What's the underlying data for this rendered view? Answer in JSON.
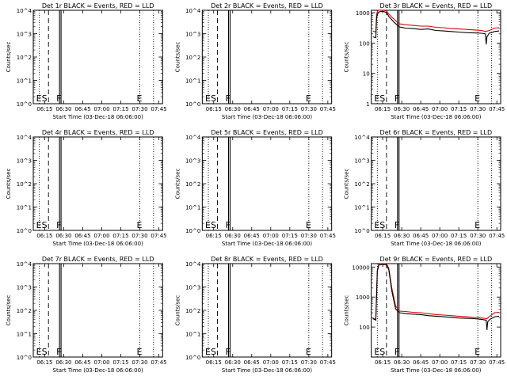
{
  "figure": {
    "xlabel_prefix": "Start Time",
    "ylabel": "Counts/sec",
    "colors": {
      "events": "#000000",
      "lld": "#dd0000",
      "axes": "#000000",
      "background": "#ffffff"
    }
  },
  "chart_data": [
    {
      "type": "line",
      "title": "Det 1r BLACK = Events, RED = LLD",
      "xlabel": "Start Time (03-Dec-18 06:06:00)",
      "ylabel": "Counts/sec",
      "xlim": [
        6.1,
        7.8
      ],
      "ylim": [
        1,
        10000
      ],
      "yscale": "log",
      "x_ticks": [
        "06:15",
        "06:30",
        "06:45",
        "07:00",
        "07:15",
        "07:30",
        "07:45"
      ],
      "y_ticks": [
        "10^0",
        "10^1",
        "10^2",
        "10^3",
        "10^4"
      ],
      "markers": [
        {
          "x": 6.18,
          "style": "dotted",
          "label": "ES"
        },
        {
          "x": 6.3,
          "style": "dashed",
          "label": ""
        },
        {
          "x": 6.445,
          "style": "solid",
          "label": "F"
        },
        {
          "x": 6.465,
          "style": "solid",
          "label": ""
        },
        {
          "x": 7.5,
          "style": "dotted",
          "label": "E"
        },
        {
          "x": 7.68,
          "style": "dotted",
          "label": ""
        }
      ],
      "series": []
    },
    {
      "type": "line",
      "title": "Det 2r BLACK = Events, RED = LLD",
      "xlabel": "Start Time (03-Dec-18 06:06:00)",
      "ylabel": "Counts/sec",
      "xlim": [
        6.1,
        7.8
      ],
      "ylim": [
        1,
        10000
      ],
      "yscale": "log",
      "x_ticks": [
        "06:15",
        "06:30",
        "06:45",
        "07:00",
        "07:15",
        "07:30",
        "07:45"
      ],
      "y_ticks": [
        "10^0",
        "10^1",
        "10^2",
        "10^3",
        "10^4"
      ],
      "markers": [
        {
          "x": 6.18,
          "style": "dotted",
          "label": "ES"
        },
        {
          "x": 6.3,
          "style": "dashed",
          "label": ""
        },
        {
          "x": 6.445,
          "style": "solid",
          "label": "F"
        },
        {
          "x": 6.465,
          "style": "solid",
          "label": ""
        },
        {
          "x": 7.5,
          "style": "dotted",
          "label": "E"
        },
        {
          "x": 7.68,
          "style": "dotted",
          "label": ""
        }
      ],
      "series": []
    },
    {
      "type": "line",
      "title": "Det 3r BLACK = Events, RED = LLD",
      "xlabel": "Start Time (03-Dec-18 06:06:00)",
      "ylabel": "Counts/sec",
      "xlim": [
        6.1,
        7.8
      ],
      "ylim": [
        1,
        1200
      ],
      "yscale": "log",
      "x_ticks": [
        "06:15",
        "06:30",
        "06:45",
        "07:00",
        "07:15",
        "07:30",
        "07:45"
      ],
      "y_ticks": [
        "1",
        "10",
        "100",
        "1000"
      ],
      "markers": [
        {
          "x": 6.18,
          "style": "dotted",
          "label": "ES"
        },
        {
          "x": 6.3,
          "style": "dashed",
          "label": ""
        },
        {
          "x": 6.445,
          "style": "solid",
          "label": "F"
        },
        {
          "x": 6.465,
          "style": "solid",
          "label": ""
        },
        {
          "x": 7.5,
          "style": "dotted",
          "label": "E"
        },
        {
          "x": 7.68,
          "style": "dotted",
          "label": ""
        }
      ],
      "series": [
        {
          "color": "#dd0000",
          "x": [
            6.12,
            6.16,
            6.17,
            6.19,
            6.22,
            6.26,
            6.3,
            6.33,
            6.4,
            6.47,
            6.55,
            6.65,
            6.75,
            6.85,
            6.95,
            7.05,
            7.15,
            7.25,
            7.35,
            7.45,
            7.55,
            7.6,
            7.65,
            7.72,
            7.78
          ],
          "y": [
            250,
            230,
            900,
            1200,
            1200,
            1200,
            1150,
            900,
            600,
            430,
            400,
            380,
            360,
            360,
            330,
            320,
            300,
            290,
            280,
            270,
            260,
            240,
            260,
            310,
            320
          ]
        },
        {
          "color": "#000000",
          "x": [
            6.12,
            6.16,
            6.17,
            6.19,
            6.22,
            6.26,
            6.3,
            6.33,
            6.4,
            6.47,
            6.55,
            6.65,
            6.75,
            6.85,
            6.95,
            7.05,
            7.15,
            7.25,
            7.35,
            7.45,
            7.55,
            7.6,
            7.61,
            7.62,
            7.65,
            7.72,
            7.78
          ],
          "y": [
            160,
            150,
            700,
            1000,
            1100,
            1100,
            1000,
            750,
            480,
            340,
            310,
            300,
            280,
            290,
            260,
            250,
            240,
            230,
            220,
            215,
            210,
            200,
            90,
            160,
            210,
            240,
            250
          ]
        }
      ]
    },
    {
      "type": "line",
      "title": "Det 4r BLACK = Events, RED = LLD",
      "xlabel": "Start Time (03-Dec-18 06:06:00)",
      "ylabel": "Counts/sec",
      "xlim": [
        6.1,
        7.8
      ],
      "ylim": [
        1,
        10000
      ],
      "yscale": "log",
      "x_ticks": [
        "06:15",
        "06:30",
        "06:45",
        "07:00",
        "07:15",
        "07:30",
        "07:45"
      ],
      "y_ticks": [
        "10^0",
        "10^1",
        "10^2",
        "10^3",
        "10^4"
      ],
      "markers": [
        {
          "x": 6.18,
          "style": "dotted",
          "label": "ES"
        },
        {
          "x": 6.3,
          "style": "dashed",
          "label": ""
        },
        {
          "x": 6.445,
          "style": "solid",
          "label": "F"
        },
        {
          "x": 6.465,
          "style": "solid",
          "label": ""
        },
        {
          "x": 7.5,
          "style": "dotted",
          "label": "E"
        },
        {
          "x": 7.68,
          "style": "dotted",
          "label": ""
        }
      ],
      "series": []
    },
    {
      "type": "line",
      "title": "Det 5r BLACK = Events, RED = LLD",
      "xlabel": "Start Time (03-Dec-18 06:06:00)",
      "ylabel": "Counts/sec",
      "xlim": [
        6.1,
        7.8
      ],
      "ylim": [
        1,
        10000
      ],
      "yscale": "log",
      "x_ticks": [
        "06:15",
        "06:30",
        "06:45",
        "07:00",
        "07:15",
        "07:30",
        "07:45"
      ],
      "y_ticks": [
        "10^0",
        "10^1",
        "10^2",
        "10^3",
        "10^4"
      ],
      "markers": [
        {
          "x": 6.18,
          "style": "dotted",
          "label": "ES"
        },
        {
          "x": 6.3,
          "style": "dashed",
          "label": ""
        },
        {
          "x": 6.445,
          "style": "solid",
          "label": "F"
        },
        {
          "x": 6.465,
          "style": "solid",
          "label": ""
        },
        {
          "x": 7.5,
          "style": "dotted",
          "label": "E"
        },
        {
          "x": 7.68,
          "style": "dotted",
          "label": ""
        }
      ],
      "series": []
    },
    {
      "type": "line",
      "title": "Det 6r BLACK = Events, RED = LLD",
      "xlabel": "Start Time (03-Dec-18 06:06:00)",
      "ylabel": "Counts/sec",
      "xlim": [
        6.1,
        7.8
      ],
      "ylim": [
        1,
        10000
      ],
      "yscale": "log",
      "x_ticks": [
        "06:15",
        "06:30",
        "06:45",
        "07:00",
        "07:15",
        "07:30",
        "07:45"
      ],
      "y_ticks": [
        "10^0",
        "10^1",
        "10^2",
        "10^3",
        "10^4"
      ],
      "markers": [
        {
          "x": 6.18,
          "style": "dotted",
          "label": "ES"
        },
        {
          "x": 6.3,
          "style": "dashed",
          "label": ""
        },
        {
          "x": 6.445,
          "style": "solid",
          "label": "F"
        },
        {
          "x": 6.465,
          "style": "solid",
          "label": ""
        },
        {
          "x": 7.5,
          "style": "dotted",
          "label": "E"
        },
        {
          "x": 7.68,
          "style": "dotted",
          "label": ""
        }
      ],
      "series": []
    },
    {
      "type": "line",
      "title": "Det 7r BLACK = Events, RED = LLD",
      "xlabel": "Start Time (03-Dec-18 06:06:00)",
      "ylabel": "Counts/sec",
      "xlim": [
        6.1,
        7.8
      ],
      "ylim": [
        1,
        10000
      ],
      "yscale": "log",
      "x_ticks": [
        "06:15",
        "06:30",
        "06:45",
        "07:00",
        "07:15",
        "07:30",
        "07:45"
      ],
      "y_ticks": [
        "10^0",
        "10^1",
        "10^2",
        "10^3",
        "10^4"
      ],
      "markers": [
        {
          "x": 6.18,
          "style": "dotted",
          "label": "ES"
        },
        {
          "x": 6.3,
          "style": "dashed",
          "label": ""
        },
        {
          "x": 6.445,
          "style": "solid",
          "label": "F"
        },
        {
          "x": 6.465,
          "style": "solid",
          "label": ""
        },
        {
          "x": 7.5,
          "style": "dotted",
          "label": "E"
        },
        {
          "x": 7.68,
          "style": "dotted",
          "label": ""
        }
      ],
      "series": []
    },
    {
      "type": "line",
      "title": "Det 8r BLACK = Events, RED = LLD",
      "xlabel": "Start Time (03-Dec-18 06:06:00)",
      "ylabel": "Counts/sec",
      "xlim": [
        6.1,
        7.8
      ],
      "ylim": [
        1,
        10000
      ],
      "yscale": "log",
      "x_ticks": [
        "06:15",
        "06:30",
        "06:45",
        "07:00",
        "07:15",
        "07:30",
        "07:45"
      ],
      "y_ticks": [
        "10^0",
        "10^1",
        "10^2",
        "10^3",
        "10^4"
      ],
      "markers": [
        {
          "x": 6.18,
          "style": "dotted",
          "label": "ES"
        },
        {
          "x": 6.3,
          "style": "dashed",
          "label": ""
        },
        {
          "x": 6.445,
          "style": "solid",
          "label": "F"
        },
        {
          "x": 6.465,
          "style": "solid",
          "label": ""
        },
        {
          "x": 7.5,
          "style": "dotted",
          "label": "E"
        },
        {
          "x": 7.68,
          "style": "dotted",
          "label": ""
        }
      ],
      "series": []
    },
    {
      "type": "line",
      "title": "Det 9r BLACK = Events, RED = LLD",
      "xlabel": "Start Time (03-Dec-18 06:06:00)",
      "ylabel": "Counts/sec",
      "xlim": [
        6.1,
        7.8
      ],
      "ylim": [
        10,
        13000
      ],
      "yscale": "log",
      "x_ticks": [
        "06:15",
        "06:30",
        "06:45",
        "07:00",
        "07:15",
        "07:30",
        "07:45"
      ],
      "y_ticks": [
        "100",
        "1000",
        "10000"
      ],
      "markers": [
        {
          "x": 6.18,
          "style": "dotted",
          "label": "ES"
        },
        {
          "x": 6.3,
          "style": "dashed",
          "label": ""
        },
        {
          "x": 6.445,
          "style": "solid",
          "label": "F"
        },
        {
          "x": 6.465,
          "style": "solid",
          "label": ""
        },
        {
          "x": 7.5,
          "style": "dotted",
          "label": "E"
        },
        {
          "x": 7.68,
          "style": "dotted",
          "label": ""
        }
      ],
      "series": [
        {
          "color": "#dd0000",
          "x": [
            6.12,
            6.16,
            6.18,
            6.2,
            6.25,
            6.3,
            6.33,
            6.37,
            6.42,
            6.47,
            6.55,
            6.65,
            6.75,
            6.85,
            6.95,
            7.05,
            7.15,
            7.25,
            7.35,
            7.45,
            7.55,
            7.62,
            7.65,
            7.72,
            7.78
          ],
          "y": [
            200,
            180,
            8000,
            13000,
            13000,
            13000,
            9000,
            2000,
            500,
            340,
            330,
            310,
            300,
            280,
            260,
            250,
            240,
            230,
            220,
            210,
            200,
            190,
            220,
            300,
            310
          ]
        },
        {
          "color": "#000000",
          "x": [
            6.12,
            6.16,
            6.18,
            6.2,
            6.25,
            6.3,
            6.33,
            6.37,
            6.42,
            6.47,
            6.55,
            6.65,
            6.75,
            6.85,
            6.95,
            7.05,
            7.15,
            7.25,
            7.35,
            7.45,
            7.55,
            7.61,
            7.62,
            7.63,
            7.66,
            7.72,
            7.78
          ],
          "y": [
            190,
            170,
            7000,
            12000,
            12000,
            12000,
            8000,
            1600,
            400,
            300,
            280,
            270,
            260,
            240,
            230,
            220,
            210,
            200,
            195,
            190,
            180,
            170,
            80,
            150,
            180,
            220,
            230
          ]
        }
      ]
    }
  ]
}
